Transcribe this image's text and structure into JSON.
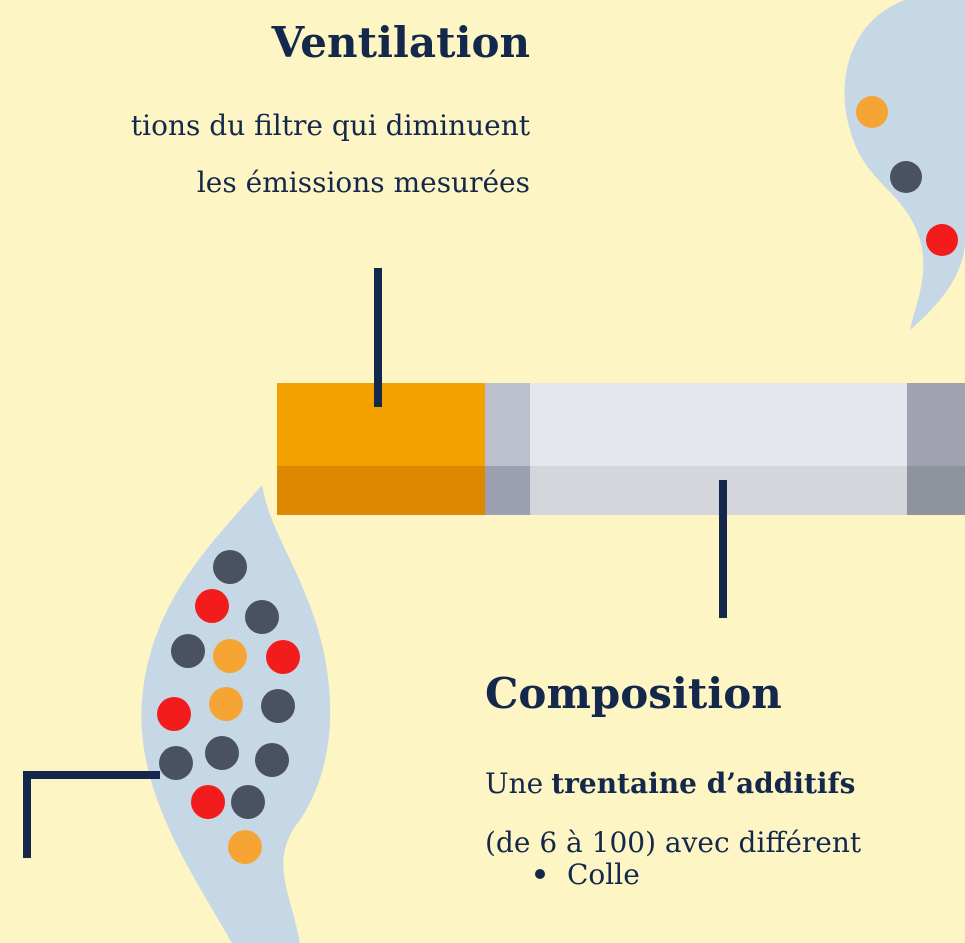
{
  "ventilation": {
    "title": "Ventilation",
    "lines": [
      "tions du filtre qui diminuent",
      "les émissions mesurées"
    ]
  },
  "composition": {
    "title": "Composition",
    "intro": {
      "prefix": "Une",
      "bold": "trentaine d’additifs"
    },
    "line2": "(de 6 à 100) avec différent",
    "items": [
      "Colle"
    ]
  }
}
